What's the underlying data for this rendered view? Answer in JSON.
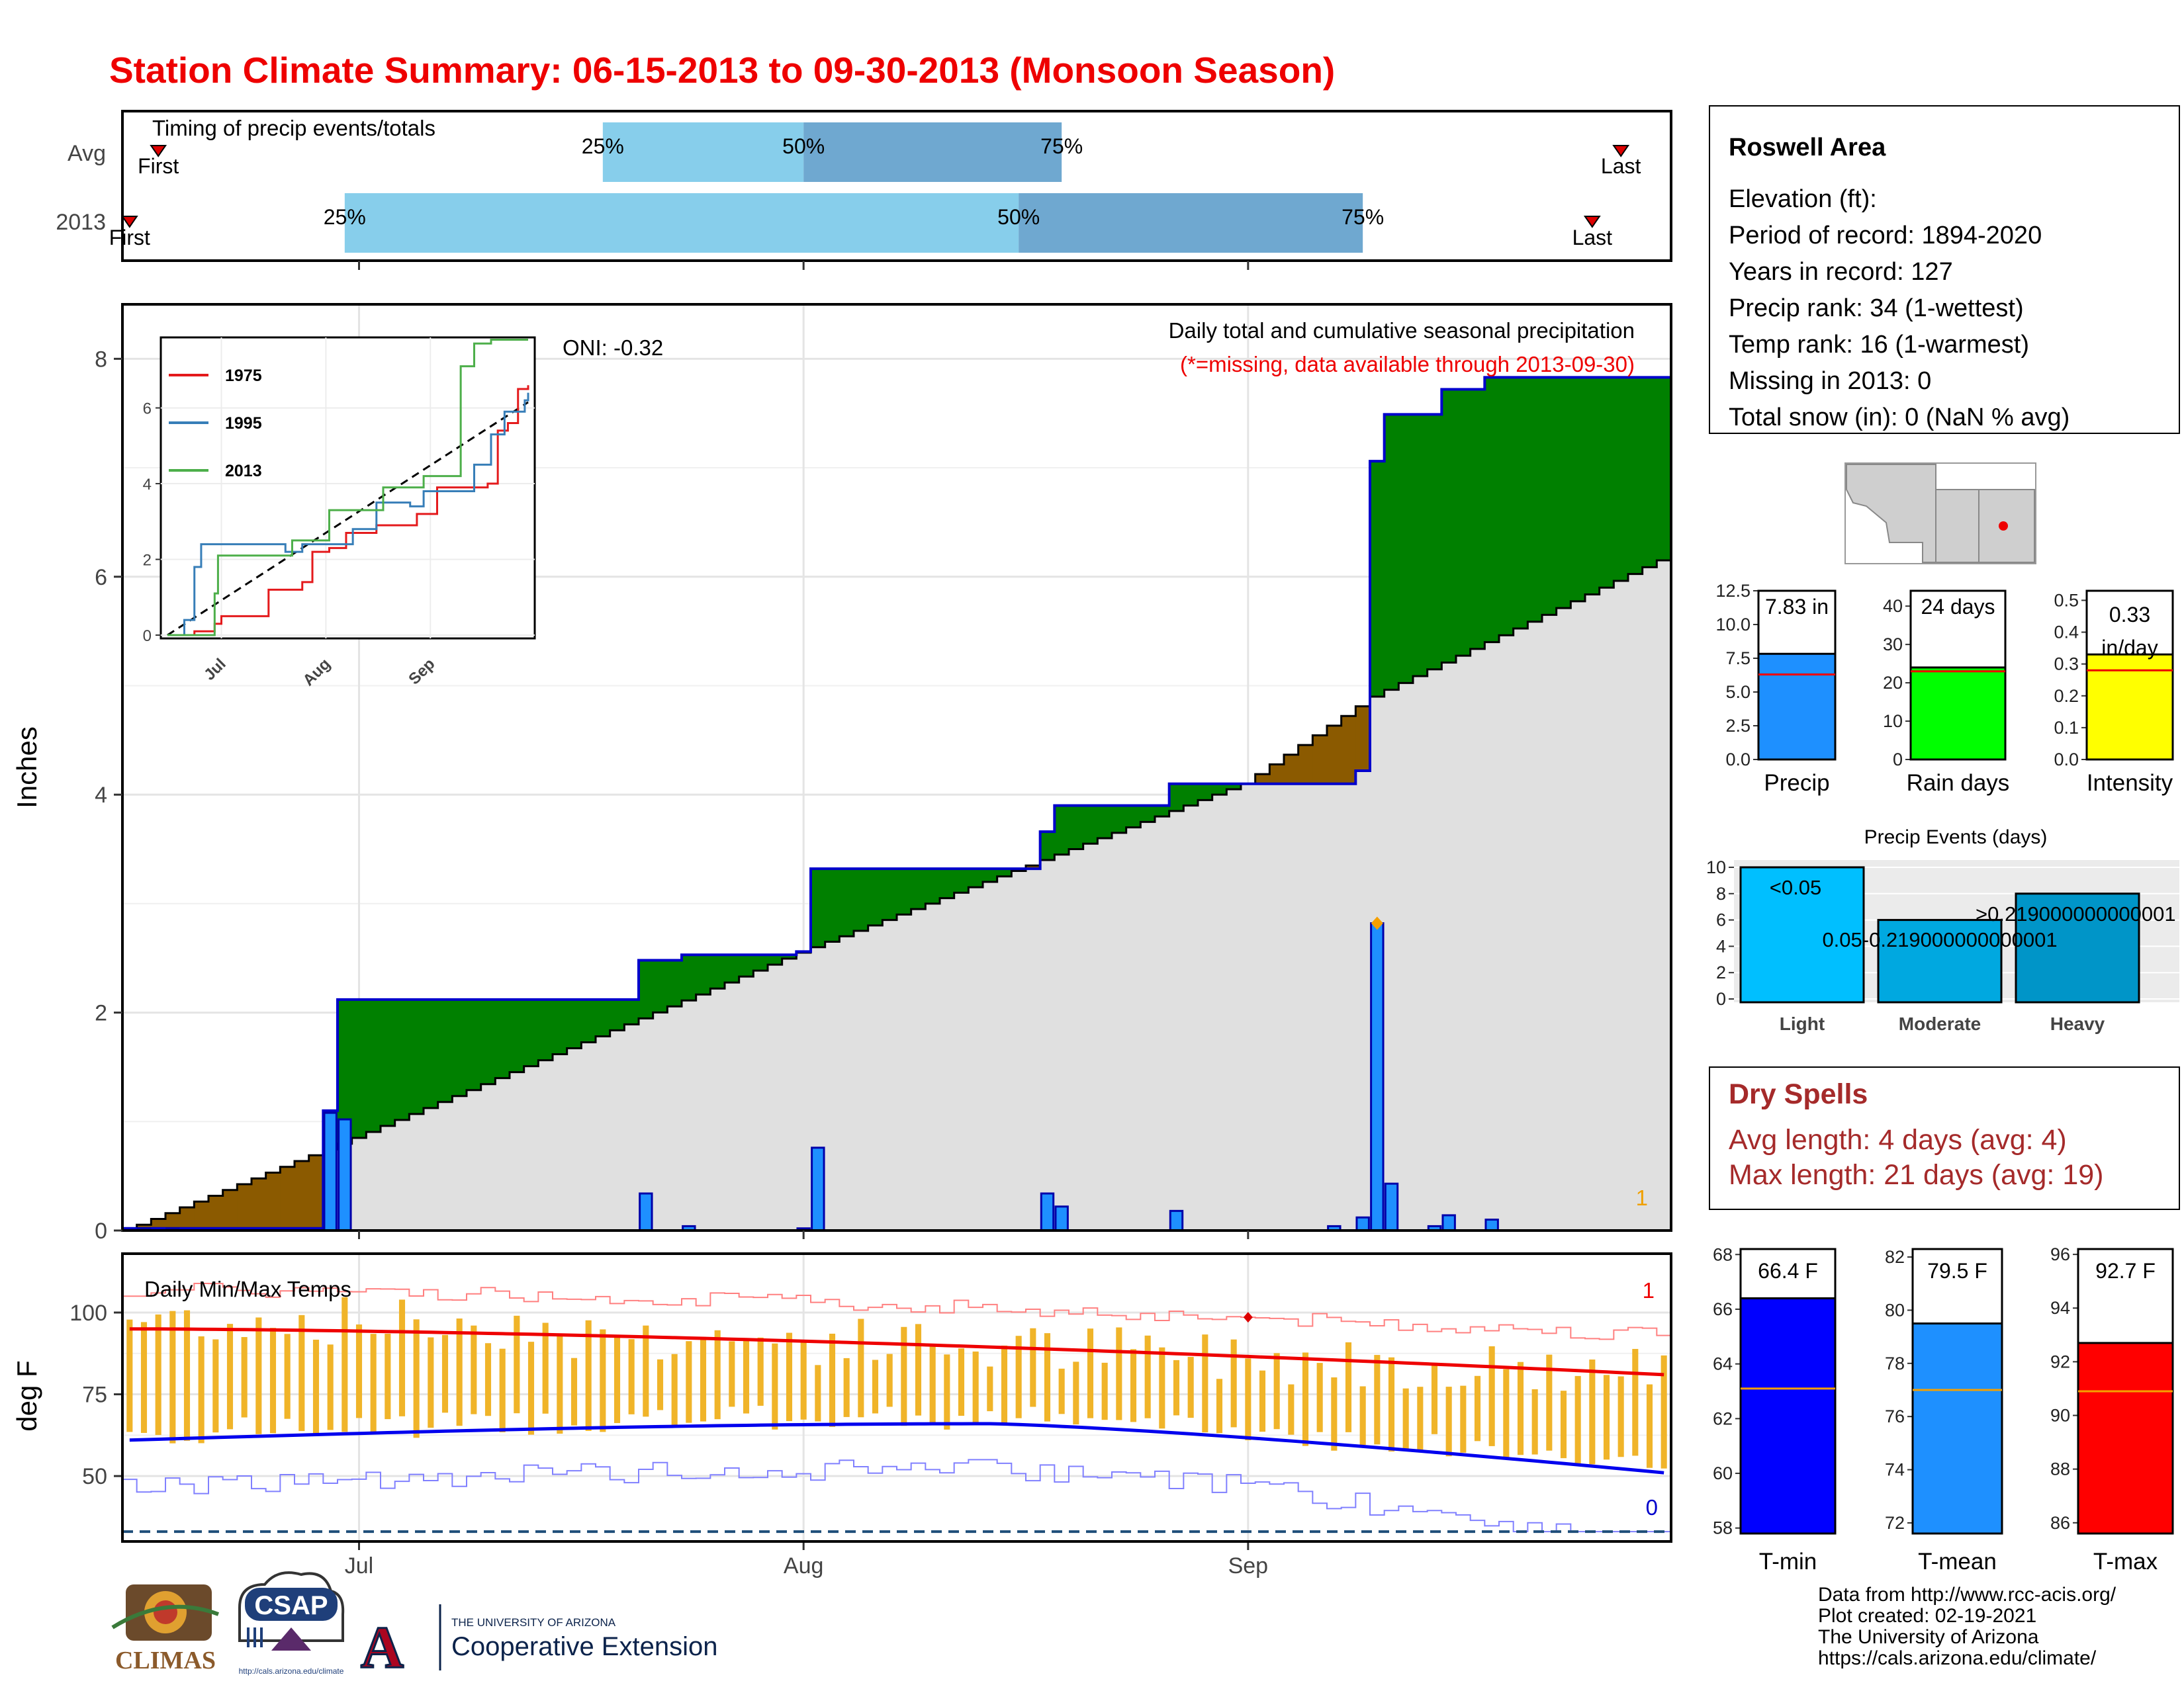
{
  "title": "Station Climate Summary: 06-15-2013 to 09-30-2013 (Monsoon Season)",
  "colors": {
    "title": "#ee0000",
    "quartile_light": "#87ceeb",
    "quartile_dark": "#6fa8d0",
    "above_normal": "#008000",
    "below_normal": "#8b5a00",
    "normal_fill": "#e0e0e0",
    "daily_bar": "#1e90ff",
    "precip_bar": "#1e90ff",
    "raindays_bar": "#00ff00",
    "intensity_bar": "#ffff00",
    "tmin": "#0000ff",
    "tmean": "#1e90ff",
    "tmax": "#ff0000",
    "temp_bars": "#f0b429",
    "dry_spells_text": "#a52a2a",
    "events_light": "#00bfff",
    "events_moderate": "#00a8e0",
    "events_heavy": "#0095c8"
  },
  "timing": {
    "label": "Timing of precip events/totals",
    "rows": [
      "Avg",
      "2013"
    ],
    "pct_labels": [
      "25%",
      "50%",
      "75%"
    ],
    "first_label": "First",
    "last_label": "Last",
    "avg": {
      "first": "2013-06-17",
      "p25": "2013-07-18",
      "p50": "2013-08-01",
      "p75": "2013-08-19",
      "last": "2013-09-27"
    },
    "y2013": {
      "first": "2013-06-15",
      "p25": "2013-06-30",
      "p50": "2013-08-16",
      "p75": "2013-09-09",
      "last": "2013-09-25"
    }
  },
  "main_chart": {
    "ylabel": "Inches",
    "yticks": [
      0,
      2,
      4,
      6,
      8
    ],
    "x_months": [
      "Jul",
      "Aug",
      "Sep"
    ],
    "oni": "ONI: -0.32",
    "subtitle": "Daily total and cumulative seasonal precipitation",
    "missing_note": "(*=missing, data available through 2013-09-30)",
    "corner_count": "1"
  },
  "inset": {
    "legend": [
      "1975",
      "1995",
      "2013"
    ],
    "yticks": [
      0,
      2,
      4,
      6
    ],
    "xticks": [
      "Jul",
      "Aug",
      "Sep"
    ]
  },
  "temp_chart": {
    "ylabel": "deg F",
    "label": "Daily Min/Max Temps",
    "yticks": [
      50,
      75,
      100
    ],
    "max_count": "1",
    "min_count": "0"
  },
  "chart_data": [
    {
      "type": "area",
      "name": "cumulative_precip",
      "x_range": [
        "2013-06-15",
        "2013-09-30"
      ],
      "ylim": [
        0,
        8.5
      ],
      "daily_precip": [
        {
          "date": "2013-06-16",
          "value": 0.02
        },
        {
          "date": "2013-06-18",
          "value": 0.02
        },
        {
          "date": "2013-06-29",
          "value": 1.08
        },
        {
          "date": "2013-06-30",
          "value": 1.02
        },
        {
          "date": "2013-07-21",
          "value": 0.34
        },
        {
          "date": "2013-07-24",
          "value": 0.04
        },
        {
          "date": "2013-08-01",
          "value": 0.02
        },
        {
          "date": "2013-08-02",
          "value": 0.76
        },
        {
          "date": "2013-08-18",
          "value": 0.34
        },
        {
          "date": "2013-08-19",
          "value": 0.22
        },
        {
          "date": "2013-08-27",
          "value": 0.18
        },
        {
          "date": "2013-09-07",
          "value": 0.04
        },
        {
          "date": "2013-09-09",
          "value": 0.12
        },
        {
          "date": "2013-09-10",
          "value": 2.82
        },
        {
          "date": "2013-09-11",
          "value": 0.43
        },
        {
          "date": "2013-09-14",
          "value": 0.04
        },
        {
          "date": "2013-09-15",
          "value": 0.14
        },
        {
          "date": "2013-09-18",
          "value": 0.1
        }
      ],
      "cumulative_2013": [
        {
          "date": "2013-06-15",
          "value": 0.02
        },
        {
          "date": "2013-06-29",
          "value": 1.1
        },
        {
          "date": "2013-06-30",
          "value": 2.12
        },
        {
          "date": "2013-07-21",
          "value": 2.48
        },
        {
          "date": "2013-07-24",
          "value": 2.53
        },
        {
          "date": "2013-08-01",
          "value": 2.56
        },
        {
          "date": "2013-08-02",
          "value": 3.32
        },
        {
          "date": "2013-08-18",
          "value": 3.66
        },
        {
          "date": "2013-08-19",
          "value": 3.9
        },
        {
          "date": "2013-08-27",
          "value": 4.1
        },
        {
          "date": "2013-09-09",
          "value": 4.22
        },
        {
          "date": "2013-09-10",
          "value": 7.06
        },
        {
          "date": "2013-09-11",
          "value": 7.49
        },
        {
          "date": "2013-09-15",
          "value": 7.72
        },
        {
          "date": "2013-09-18",
          "value": 7.83
        },
        {
          "date": "2013-09-30",
          "value": 7.83
        }
      ],
      "normal_cumulative": [
        {
          "date": "2013-06-15",
          "value": 0.0
        },
        {
          "date": "2013-07-01",
          "value": 0.85
        },
        {
          "date": "2013-08-01",
          "value": 2.55
        },
        {
          "date": "2013-09-01",
          "value": 4.1
        },
        {
          "date": "2013-09-10",
          "value": 4.9
        },
        {
          "date": "2013-09-30",
          "value": 6.15
        }
      ]
    },
    {
      "type": "line",
      "name": "inset_cumulative_comparison",
      "series_names": [
        "1975",
        "1995",
        "2013"
      ],
      "ylim": [
        0,
        7.6
      ]
    },
    {
      "type": "bar",
      "name": "daily_min_max_temps",
      "ylim": [
        30,
        118
      ],
      "tmax_normal_start": 95,
      "tmax_normal_end": 81,
      "tmin_normal_start": 61,
      "tmin_normal_peak": 66,
      "tmin_normal_end": 51,
      "record_min_floor": 33
    },
    {
      "type": "bar",
      "name": "season_precip",
      "categories": [
        "Precip"
      ],
      "values": [
        7.83
      ],
      "value_label": "7.83 in",
      "avg": 6.3,
      "yticks": [
        "0.0",
        "2.5",
        "5.0",
        "7.5",
        "10.0",
        "12.5"
      ]
    },
    {
      "type": "bar",
      "name": "rain_days",
      "categories": [
        "Rain days"
      ],
      "values": [
        24
      ],
      "value_label": "24 days",
      "avg": 23,
      "yticks": [
        "0",
        "10",
        "20",
        "30",
        "40"
      ]
    },
    {
      "type": "bar",
      "name": "intensity",
      "categories": [
        "Intensity"
      ],
      "values": [
        0.33
      ],
      "value_label": "0.33",
      "value_label2": "in/day",
      "avg": 0.28,
      "yticks": [
        "0.0",
        "0.1",
        "0.2",
        "0.3",
        "0.4",
        "0.5"
      ]
    },
    {
      "type": "bar",
      "name": "precip_events",
      "title": "Precip Events (days)",
      "categories": [
        "Light",
        "Moderate",
        "Heavy"
      ],
      "values": [
        10,
        6,
        8
      ],
      "bar_labels": [
        "<0.05",
        "0.05-0.219000000000001",
        ">0.219000000000001"
      ],
      "yticks": [
        "0",
        "2",
        "4",
        "6",
        "8",
        "10"
      ]
    },
    {
      "type": "bar",
      "name": "tmin",
      "categories": [
        "T-min"
      ],
      "values": [
        66.4
      ],
      "value_label": "66.4 F",
      "avg": 63.1,
      "ylim": [
        57.8,
        68.2
      ],
      "yticks": [
        "58",
        "60",
        "62",
        "64",
        "66",
        "68"
      ]
    },
    {
      "type": "bar",
      "name": "tmean",
      "categories": [
        "T-mean"
      ],
      "values": [
        79.5
      ],
      "value_label": "79.5 F",
      "avg": 77.0,
      "ylim": [
        71.6,
        82.3
      ],
      "yticks": [
        "72",
        "74",
        "76",
        "78",
        "80",
        "82"
      ]
    },
    {
      "type": "bar",
      "name": "tmax",
      "categories": [
        "T-max"
      ],
      "values": [
        92.7
      ],
      "value_label": "92.7 F",
      "avg": 90.9,
      "ylim": [
        85.6,
        96.2
      ],
      "yticks": [
        "86",
        "88",
        "90",
        "92",
        "94",
        "96"
      ]
    }
  ],
  "info_box": {
    "station": "Roswell Area",
    "lines": [
      "Elevation (ft):",
      "Period of record: 1894-2020",
      "Years in record: 127",
      "Precip rank: 34 (1-wettest)",
      "Temp rank: 16 (1-warmest)",
      "Missing in 2013: 0",
      "Total snow (in): 0 (NaN % avg)"
    ]
  },
  "dry_spells": {
    "title": "Dry Spells",
    "avg_line": "Avg length: 4 days (avg: 4)",
    "max_line": "Max length: 21 days (avg: 19)"
  },
  "footer": {
    "lines": [
      "Data from http://www.rcc-acis.org/",
      "Plot created: 02-19-2021",
      "The University of Arizona",
      "https://cals.arizona.edu/climate/"
    ],
    "climas": "CLIMAS",
    "csap": "CSAP",
    "csap_url": "http://cals.arizona.edu/climate",
    "ua_line1": "THE UNIVERSITY OF ARIZONA",
    "ua_line2": "Cooperative Extension"
  }
}
